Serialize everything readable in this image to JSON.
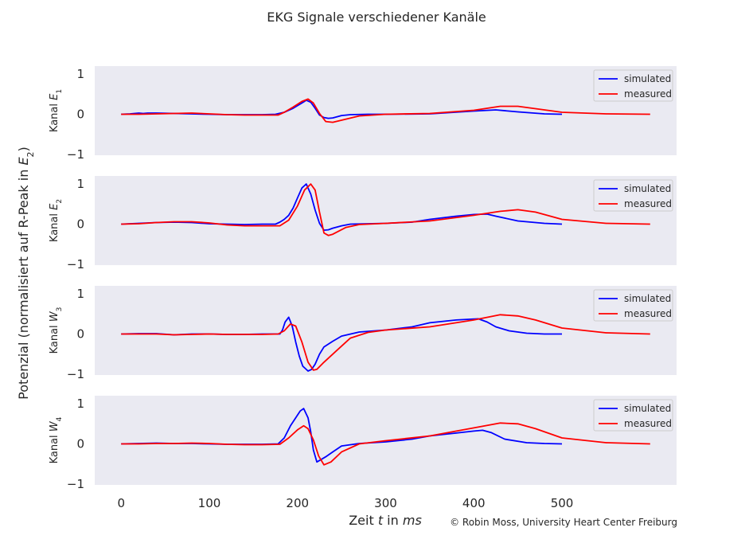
{
  "figure": {
    "title": "EKG Signale verschiedener Kanäle",
    "ylabel_prefix": "Potenzial (normalisiert auf R-Peak in ",
    "ylabel_math": "E",
    "ylabel_sub": "2",
    "ylabel_suffix": ")",
    "xlabel_prefix": "Zeit ",
    "xlabel_math1": "t",
    "xlabel_mid": " in ",
    "xlabel_math2": "ms",
    "credit": "© Robin Moss, University Heart Center Freiburg",
    "panel_bg": "#EAEAF2",
    "simulated_color": "#0000FF",
    "measured_color": "#FF0000"
  },
  "chart_data": [
    {
      "type": "line",
      "channel_prefix": "Kanal ",
      "channel_symbol": "E",
      "channel_sub": "1",
      "xlim": [
        -30,
        630
      ],
      "ylim": [
        -1.02,
        1.2
      ],
      "yticks": [
        -1,
        0,
        1
      ],
      "ytick_labels": [
        "−1",
        "0",
        "1"
      ],
      "legend": "top-right",
      "grid": false,
      "series": [
        {
          "name": "simulated",
          "x": [
            0,
            10,
            20,
            25,
            30,
            40,
            60,
            80,
            100,
            120,
            140,
            160,
            175,
            185,
            195,
            205,
            210,
            215,
            220,
            225,
            230,
            235,
            240,
            245,
            250,
            260,
            280,
            300,
            350,
            400,
            425,
            450,
            480,
            500
          ],
          "y": [
            0,
            0.01,
            0.03,
            0.02,
            0.03,
            0.03,
            0.02,
            0.01,
            0.0,
            -0.01,
            -0.01,
            -0.01,
            0,
            0.05,
            0.15,
            0.28,
            0.35,
            0.3,
            0.15,
            -0.02,
            -0.08,
            -0.1,
            -0.09,
            -0.06,
            -0.03,
            -0.01,
            0,
            0,
            0.01,
            0.08,
            0.11,
            0.06,
            0.01,
            0
          ]
        },
        {
          "name": "measured",
          "x": [
            0,
            20,
            40,
            60,
            80,
            100,
            120,
            140,
            160,
            178,
            185,
            195,
            205,
            212,
            218,
            225,
            232,
            240,
            255,
            270,
            300,
            350,
            400,
            430,
            450,
            470,
            500,
            550,
            600
          ],
          "y": [
            0,
            0,
            0.01,
            0.02,
            0.03,
            0.01,
            -0.01,
            -0.02,
            -0.02,
            -0.02,
            0.05,
            0.18,
            0.32,
            0.38,
            0.28,
            0.02,
            -0.18,
            -0.2,
            -0.12,
            -0.04,
            0,
            0.02,
            0.1,
            0.2,
            0.2,
            0.14,
            0.05,
            0.01,
            0
          ]
        }
      ]
    },
    {
      "type": "line",
      "channel_prefix": "Kanal ",
      "channel_symbol": "E",
      "channel_sub": "2",
      "xlim": [
        -30,
        630
      ],
      "ylim": [
        -1.02,
        1.2
      ],
      "yticks": [
        -1,
        0,
        1
      ],
      "ytick_labels": [
        "−1",
        "0",
        "1"
      ],
      "legend": "top-right",
      "grid": false,
      "series": [
        {
          "name": "simulated",
          "x": [
            0,
            10,
            20,
            30,
            40,
            60,
            80,
            100,
            120,
            140,
            160,
            175,
            180,
            185,
            190,
            195,
            200,
            205,
            210,
            215,
            220,
            225,
            230,
            235,
            240,
            250,
            260,
            280,
            300,
            330,
            350,
            380,
            400,
            415,
            425,
            450,
            480,
            500
          ],
          "y": [
            0,
            0.01,
            0.02,
            0.03,
            0.04,
            0.05,
            0.04,
            0.01,
            0.0,
            -0.01,
            0,
            0,
            0.05,
            0.12,
            0.22,
            0.4,
            0.65,
            0.9,
            1.0,
            0.75,
            0.35,
            0.02,
            -0.15,
            -0.14,
            -0.1,
            -0.04,
            0,
            0.01,
            0.02,
            0.05,
            0.12,
            0.2,
            0.24,
            0.25,
            0.2,
            0.08,
            0.02,
            0
          ]
        },
        {
          "name": "measured",
          "x": [
            0,
            20,
            40,
            60,
            80,
            100,
            120,
            140,
            160,
            180,
            190,
            200,
            208,
            215,
            220,
            225,
            230,
            235,
            240,
            255,
            270,
            300,
            350,
            400,
            430,
            450,
            470,
            500,
            550,
            600
          ],
          "y": [
            0,
            0.01,
            0.04,
            0.06,
            0.06,
            0.03,
            -0.02,
            -0.04,
            -0.04,
            -0.04,
            0.1,
            0.45,
            0.85,
            1.0,
            0.85,
            0.3,
            -0.22,
            -0.28,
            -0.25,
            -0.08,
            -0.01,
            0.02,
            0.08,
            0.22,
            0.32,
            0.36,
            0.3,
            0.12,
            0.02,
            0
          ]
        }
      ]
    },
    {
      "type": "line",
      "channel_prefix": "Kanal ",
      "channel_symbol": "W",
      "channel_sub": "3",
      "xlim": [
        -30,
        630
      ],
      "ylim": [
        -1.02,
        1.2
      ],
      "yticks": [
        -1,
        0,
        1
      ],
      "ytick_labels": [
        "−1",
        "0",
        "1"
      ],
      "legend": "top-right",
      "grid": false,
      "series": [
        {
          "name": "simulated",
          "x": [
            0,
            20,
            40,
            60,
            80,
            100,
            120,
            140,
            160,
            180,
            183,
            186,
            190,
            194,
            198,
            202,
            206,
            212,
            216,
            220,
            225,
            230,
            240,
            250,
            270,
            300,
            330,
            350,
            380,
            405,
            415,
            425,
            440,
            460,
            480,
            500
          ],
          "y": [
            0,
            0.01,
            0.01,
            -0.02,
            0,
            0,
            -0.01,
            -0.01,
            0,
            0,
            0.1,
            0.3,
            0.42,
            0.2,
            -0.2,
            -0.55,
            -0.8,
            -0.92,
            -0.88,
            -0.75,
            -0.5,
            -0.32,
            -0.18,
            -0.05,
            0.05,
            0.1,
            0.18,
            0.28,
            0.35,
            0.38,
            0.3,
            0.18,
            0.08,
            0.02,
            0,
            0
          ]
        },
        {
          "name": "measured",
          "x": [
            0,
            20,
            40,
            60,
            80,
            100,
            120,
            140,
            160,
            178,
            185,
            192,
            198,
            205,
            212,
            218,
            222,
            230,
            245,
            260,
            280,
            300,
            350,
            400,
            430,
            450,
            470,
            500,
            550,
            600
          ],
          "y": [
            0,
            0,
            0,
            -0.02,
            -0.01,
            0,
            -0.01,
            -0.01,
            -0.01,
            0,
            0.08,
            0.25,
            0.2,
            -0.2,
            -0.7,
            -0.9,
            -0.88,
            -0.7,
            -0.4,
            -0.1,
            0.04,
            0.1,
            0.18,
            0.35,
            0.48,
            0.45,
            0.35,
            0.15,
            0.03,
            0
          ]
        }
      ]
    },
    {
      "type": "line",
      "channel_prefix": "Kanal ",
      "channel_symbol": "W",
      "channel_sub": "4",
      "xlim": [
        -30,
        630
      ],
      "ylim": [
        -1.02,
        1.2
      ],
      "yticks": [
        -1,
        0,
        1
      ],
      "ytick_labels": [
        "−1",
        "0",
        "1"
      ],
      "legend": "top-right",
      "grid": false,
      "series": [
        {
          "name": "simulated",
          "x": [
            0,
            20,
            40,
            60,
            80,
            100,
            120,
            140,
            160,
            178,
            185,
            192,
            198,
            203,
            207,
            212,
            215,
            218,
            222,
            226,
            232,
            240,
            250,
            270,
            300,
            330,
            350,
            380,
            400,
            410,
            420,
            435,
            460,
            480,
            500
          ],
          "y": [
            0,
            0.01,
            0.02,
            0.01,
            0.01,
            0,
            -0.01,
            -0.01,
            -0.01,
            0,
            0.15,
            0.45,
            0.65,
            0.82,
            0.88,
            0.65,
            0.3,
            -0.15,
            -0.45,
            -0.4,
            -0.32,
            -0.2,
            -0.05,
            0.01,
            0.05,
            0.12,
            0.2,
            0.27,
            0.32,
            0.34,
            0.28,
            0.12,
            0.03,
            0.01,
            0
          ]
        },
        {
          "name": "measured",
          "x": [
            0,
            20,
            40,
            60,
            80,
            100,
            120,
            140,
            160,
            180,
            190,
            200,
            207,
            212,
            218,
            224,
            230,
            238,
            250,
            270,
            300,
            350,
            400,
            430,
            450,
            470,
            500,
            550,
            600
          ],
          "y": [
            0,
            0,
            0.01,
            0.01,
            0.02,
            0.01,
            -0.01,
            -0.02,
            -0.02,
            -0.01,
            0.15,
            0.35,
            0.45,
            0.38,
            0.1,
            -0.3,
            -0.52,
            -0.45,
            -0.2,
            0,
            0.08,
            0.2,
            0.4,
            0.52,
            0.5,
            0.38,
            0.15,
            0.03,
            0
          ]
        }
      ]
    }
  ],
  "x_axis": {
    "ticks": [
      0,
      100,
      200,
      300,
      400,
      500
    ],
    "tick_labels": [
      "0",
      "100",
      "200",
      "300",
      "400",
      "500"
    ]
  }
}
